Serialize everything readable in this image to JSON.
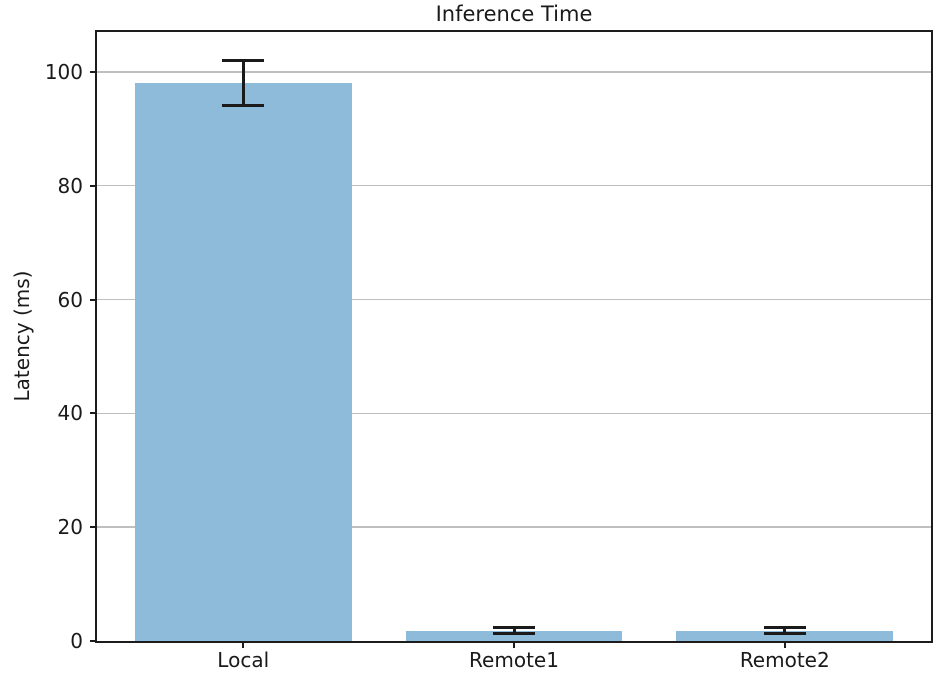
{
  "chart_data": {
    "type": "bar",
    "title": "Inference Time",
    "xlabel": "",
    "ylabel": "Latency (ms)",
    "categories": [
      "Local",
      "Remote1",
      "Remote2"
    ],
    "values": [
      98,
      1.8,
      1.8
    ],
    "errors": [
      4,
      0.55,
      0.55
    ],
    "yticks": [
      0,
      20,
      40,
      60,
      80,
      100
    ],
    "ylim": [
      0,
      107
    ],
    "grid": "horizontal-only",
    "legend": "none",
    "colors": {
      "bar_fill": "#8fbbda",
      "error_bar": "#1a1a1a",
      "gridline": "#bfbfbf",
      "spine": "#1c1c1c",
      "text": "#1a1a1a",
      "background": "#ffffff"
    }
  }
}
